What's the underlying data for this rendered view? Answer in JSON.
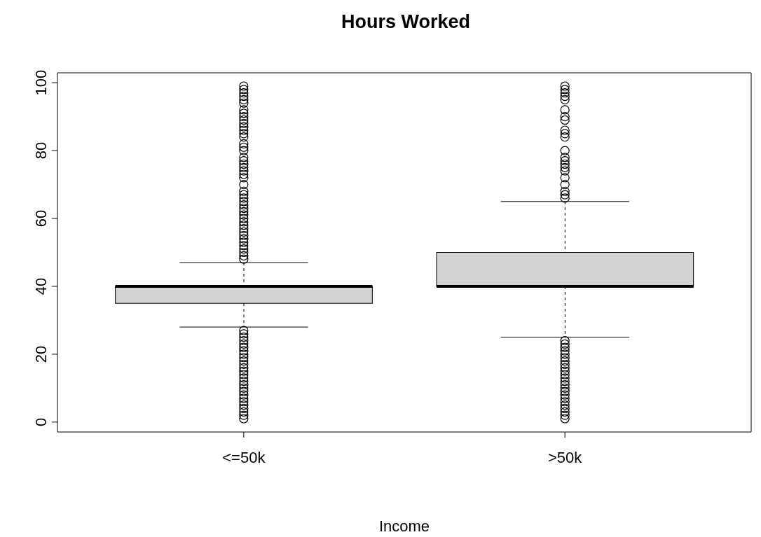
{
  "chart_data": {
    "type": "box",
    "title": "Hours Worked",
    "xlabel": "Income",
    "categories": [
      "<=50k",
      ">50k"
    ],
    "color": "#d3d3d3",
    "boxes": [
      {
        "low": 28,
        "q1": 35,
        "median": 40,
        "q3": 40,
        "high": 47,
        "outliers": [
          1,
          2,
          3,
          4,
          5,
          6,
          7,
          8,
          9,
          10,
          11,
          12,
          13,
          14,
          15,
          16,
          17,
          18,
          19,
          20,
          21,
          22,
          23,
          24,
          25,
          26,
          27,
          48,
          49,
          50,
          51,
          52,
          53,
          54,
          55,
          56,
          57,
          58,
          59,
          60,
          61,
          62,
          63,
          64,
          65,
          66,
          67,
          68,
          70,
          72,
          73,
          74,
          75,
          76,
          77,
          78,
          80,
          81,
          82,
          84,
          85,
          86,
          87,
          88,
          89,
          90,
          91,
          92,
          94,
          95,
          96,
          97,
          98,
          99
        ]
      },
      {
        "low": 25,
        "q1": 40,
        "median": 40,
        "q3": 50,
        "high": 65,
        "outliers": [
          1,
          2,
          3,
          4,
          5,
          6,
          7,
          8,
          9,
          10,
          11,
          12,
          13,
          14,
          15,
          16,
          17,
          18,
          19,
          20,
          21,
          22,
          23,
          24,
          66,
          67,
          68,
          70,
          72,
          74,
          75,
          76,
          77,
          78,
          80,
          84,
          85,
          86,
          89,
          90,
          92,
          95,
          96,
          97,
          98,
          99
        ]
      }
    ],
    "ylim": [
      -2.92,
      102.92
    ],
    "yticks": [
      0,
      20,
      40,
      60,
      80,
      100
    ],
    "legend": false,
    "marker": "circle"
  }
}
